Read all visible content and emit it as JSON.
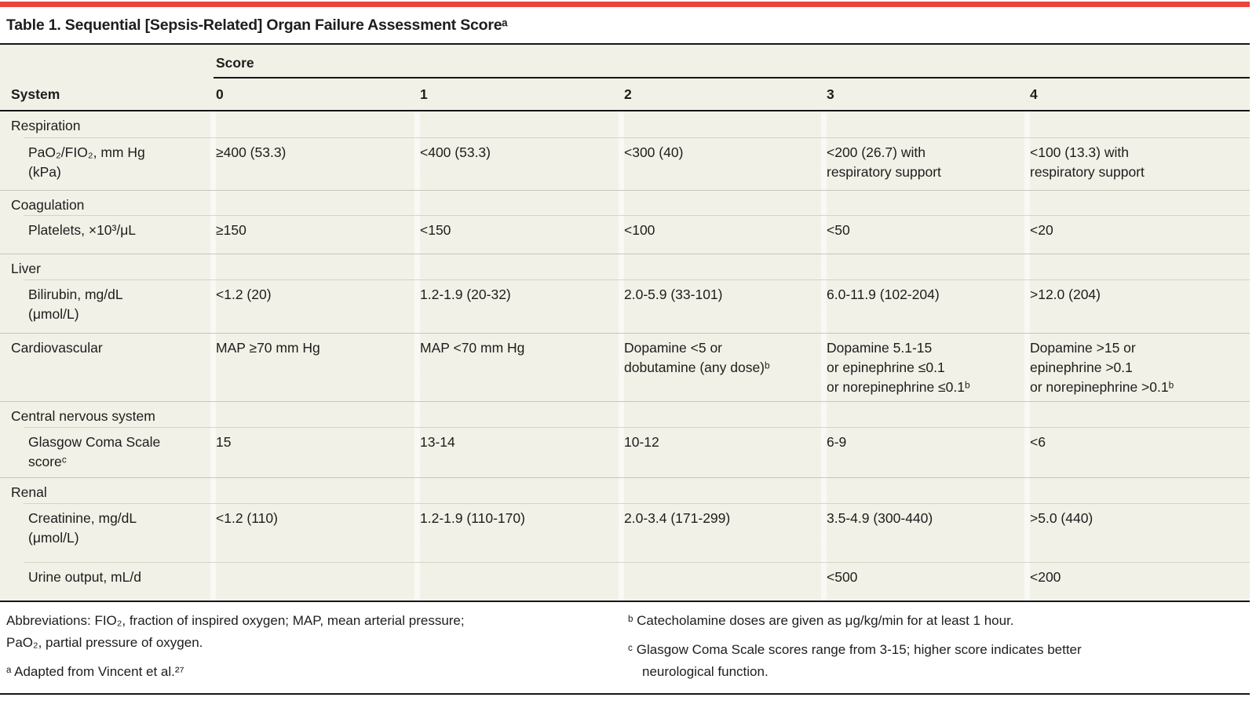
{
  "colors": {
    "accent_bar": "#e9453c",
    "table_bg": "#f2f1e8"
  },
  "page": {
    "title": "Table 1. Sequential [Sepsis-Related] Organ Failure Assessment Scoreᵃ"
  },
  "table": {
    "header": {
      "system": "System",
      "score": "Score",
      "score_values": [
        "0",
        "1",
        "2",
        "3",
        "4"
      ]
    },
    "rows": [
      {
        "type": "section",
        "label": "Respiration",
        "cells": [
          "",
          "",
          "",
          "",
          ""
        ]
      },
      {
        "type": "item",
        "label": "PaO₂/FIO₂, mm Hg\n(kPa)",
        "cells": [
          "≥400 (53.3)",
          "<400 (53.3)",
          "<300 (40)",
          "<200 (26.7) with\nrespiratory support",
          "<100 (13.3) with\nrespiratory support"
        ]
      },
      {
        "type": "section",
        "label": "Coagulation",
        "cells": [
          "",
          "",
          "",
          "",
          ""
        ]
      },
      {
        "type": "item",
        "label": "Platelets, ×10³/μL",
        "cells": [
          "≥150",
          "<150",
          "<100",
          "<50",
          "<20"
        ]
      },
      {
        "type": "section",
        "label": "Liver",
        "cells": [
          "",
          "",
          "",
          "",
          ""
        ]
      },
      {
        "type": "item",
        "label": "Bilirubin, mg/dL\n(μmol/L)",
        "cells": [
          "<1.2 (20)",
          "1.2-1.9 (20-32)",
          "2.0-5.9 (33-101)",
          "6.0-11.9 (102-204)",
          ">12.0 (204)"
        ]
      },
      {
        "type": "section",
        "label": "Cardiovascular",
        "cells": [
          "MAP ≥70 mm Hg",
          "MAP <70 mm Hg",
          "Dopamine <5 or\ndobutamine (any dose)ᵇ",
          "Dopamine 5.1-15\nor epinephrine ≤0.1\nor norepinephrine ≤0.1ᵇ",
          "Dopamine >15 or\nepinephrine >0.1\nor norepinephrine >0.1ᵇ"
        ]
      },
      {
        "type": "section",
        "label": "Central nervous system",
        "cells": [
          "",
          "",
          "",
          "",
          ""
        ]
      },
      {
        "type": "item",
        "label": "Glasgow Coma Scale\nscoreᶜ",
        "cells": [
          "15",
          "13-14",
          "10-12",
          "6-9",
          "<6"
        ]
      },
      {
        "type": "section",
        "label": "Renal",
        "cells": [
          "",
          "",
          "",
          "",
          ""
        ]
      },
      {
        "type": "item",
        "label": "Creatinine, mg/dL\n(μmol/L)",
        "cells": [
          "<1.2 (110)",
          "1.2-1.9 (110-170)",
          "2.0-3.4 (171-299)",
          "3.5-4.9 (300-440)",
          ">5.0 (440)"
        ]
      },
      {
        "type": "item",
        "label": "Urine output, mL/d",
        "cells": [
          "",
          "",
          "",
          "<500",
          "<200"
        ]
      }
    ]
  },
  "footnotes": {
    "abbreviations": "Abbreviations: FIO₂, fraction of inspired oxygen; MAP, mean arterial pressure;\nPaO₂, partial pressure of oxygen.",
    "a": "ᵃ Adapted from Vincent et al.²⁷",
    "b": "ᵇ Catecholamine doses are given as μg/kg/min for at least 1 hour.",
    "c": "ᶜ Glasgow Coma Scale scores range from 3-15; higher score indicates better\nneurological function."
  }
}
